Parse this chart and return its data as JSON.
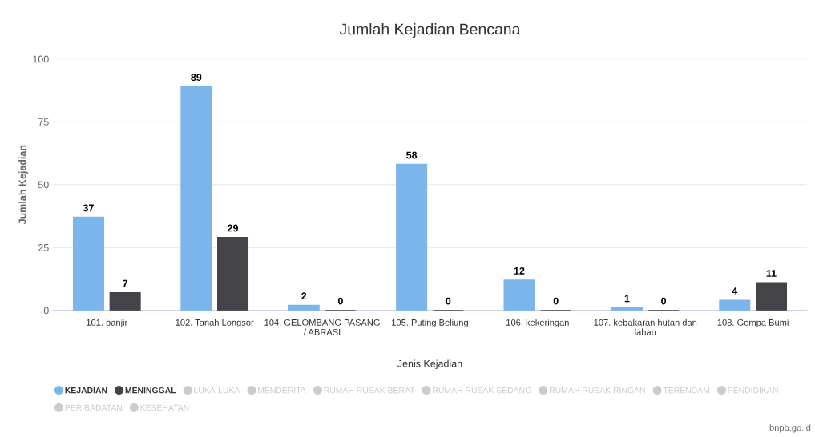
{
  "chart_data": {
    "type": "bar",
    "title": "Jumlah Kejadian Bencana",
    "xlabel": "Jenis Kejadian",
    "ylabel": "Jumlah Kejadian",
    "categories": [
      "101. banjir",
      "102. Tanah Longsor",
      "104. GELOMBANG PASANG / ABRASI",
      "105. Puting Beliung",
      "106. kekeringan",
      "107. kebakaran hutan dan lahan",
      "108. Gempa Bumi"
    ],
    "series": [
      {
        "name": "KEJADIAN",
        "color": "#7cb5ec",
        "values": [
          37,
          89,
          2,
          58,
          12,
          1,
          4
        ]
      },
      {
        "name": "MENINGGAL",
        "color": "#434348",
        "values": [
          7,
          29,
          0,
          0,
          0,
          0,
          11
        ]
      },
      {
        "name": "LUKA-LUKA",
        "color": "#cccccc",
        "values": [
          null,
          null,
          null,
          null,
          null,
          null,
          null
        ]
      },
      {
        "name": "MENDERITA",
        "color": "#cccccc",
        "values": [
          null,
          null,
          null,
          null,
          null,
          null,
          null
        ]
      },
      {
        "name": "RUMAH RUSAK BERAT",
        "color": "#cccccc",
        "values": [
          null,
          null,
          null,
          null,
          null,
          null,
          null
        ]
      },
      {
        "name": "RUMAH RUSAK SEDANG",
        "color": "#cccccc",
        "values": [
          null,
          null,
          null,
          null,
          null,
          null,
          null
        ]
      },
      {
        "name": "RUMAH RUSAK RINGAN",
        "color": "#cccccc",
        "values": [
          null,
          null,
          null,
          null,
          null,
          null,
          null
        ]
      },
      {
        "name": "TERENDAM",
        "color": "#cccccc",
        "values": [
          null,
          null,
          null,
          null,
          null,
          null,
          null
        ]
      },
      {
        "name": "PENDIDIKAN",
        "color": "#cccccc",
        "values": [
          null,
          null,
          null,
          null,
          null,
          null,
          null
        ]
      },
      {
        "name": "PERIBADATAN",
        "color": "#cccccc",
        "values": [
          null,
          null,
          null,
          null,
          null,
          null,
          null
        ]
      },
      {
        "name": "KESEHATAN",
        "color": "#cccccc",
        "values": [
          null,
          null,
          null,
          null,
          null,
          null,
          null
        ]
      }
    ],
    "ylim": [
      0,
      100
    ],
    "yticks": [
      0,
      25,
      50,
      75,
      100
    ],
    "grid": "y",
    "legend": "bottom left",
    "data_labels": true,
    "annotations": [
      "bnpb.go.id"
    ]
  }
}
